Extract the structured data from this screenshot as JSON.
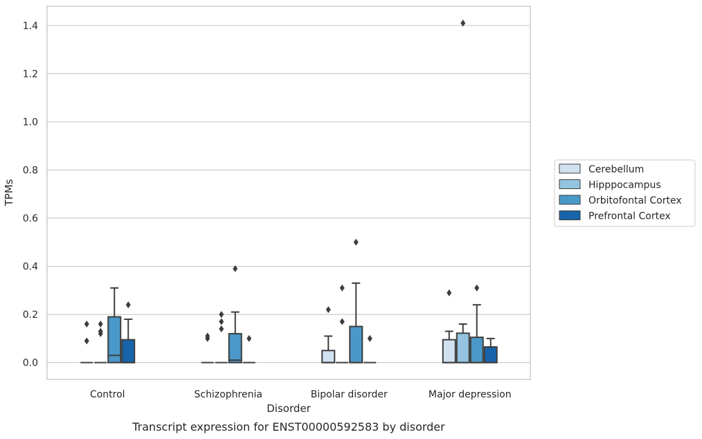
{
  "chart_data": {
    "type": "box",
    "title": "",
    "caption": "Transcript expression for ENST00000592583 by disorder",
    "xlabel": "Disorder",
    "ylabel": "TPMs",
    "ylim": [
      -0.07,
      1.48
    ],
    "yticks": [
      0.0,
      0.2,
      0.4,
      0.6,
      0.8,
      1.0,
      1.2,
      1.4
    ],
    "ytick_labels": [
      "0.0",
      "0.2",
      "0.4",
      "0.6",
      "0.8",
      "1.0",
      "1.2",
      "1.4"
    ],
    "grid": true,
    "legend_position": "right",
    "categories": [
      "Control",
      "Schizophrenia",
      "Bipolar disorder",
      "Major depression"
    ],
    "series": [
      {
        "name": "Cerebellum",
        "color": "#d0e1f2",
        "boxes": [
          {
            "q1": 0.0,
            "median": 0.0,
            "q3": 0.0,
            "whisker_low": 0.0,
            "whisker_high": 0.0,
            "outliers": [
              0.16,
              0.09
            ]
          },
          {
            "q1": 0.0,
            "median": 0.0,
            "q3": 0.0,
            "whisker_low": 0.0,
            "whisker_high": 0.0,
            "outliers": [
              0.11,
              0.1
            ]
          },
          {
            "q1": 0.0,
            "median": 0.0,
            "q3": 0.05,
            "whisker_low": 0.0,
            "whisker_high": 0.11,
            "outliers": [
              0.22
            ]
          },
          {
            "q1": 0.0,
            "median": 0.0,
            "q3": 0.095,
            "whisker_low": 0.0,
            "whisker_high": 0.13,
            "outliers": [
              0.29
            ]
          }
        ]
      },
      {
        "name": "Hipppocampus",
        "color": "#94c4df",
        "boxes": [
          {
            "q1": 0.0,
            "median": 0.0,
            "q3": 0.0,
            "whisker_low": 0.0,
            "whisker_high": 0.0,
            "outliers": [
              0.16,
              0.13,
              0.12
            ]
          },
          {
            "q1": 0.0,
            "median": 0.0,
            "q3": 0.0,
            "whisker_low": 0.0,
            "whisker_high": 0.0,
            "outliers": [
              0.2,
              0.17,
              0.14
            ]
          },
          {
            "q1": 0.0,
            "median": 0.0,
            "q3": 0.0,
            "whisker_low": 0.0,
            "whisker_high": 0.0,
            "outliers": [
              0.31,
              0.17
            ]
          },
          {
            "q1": 0.0,
            "median": 0.0,
            "q3": 0.122,
            "whisker_low": 0.0,
            "whisker_high": 0.16,
            "outliers": [
              1.41
            ]
          }
        ]
      },
      {
        "name": "Orbitofontal Cortex",
        "color": "#4a98c9",
        "boxes": [
          {
            "q1": 0.0,
            "median": 0.03,
            "q3": 0.19,
            "whisker_low": 0.0,
            "whisker_high": 0.31,
            "outliers": []
          },
          {
            "q1": 0.0,
            "median": 0.01,
            "q3": 0.12,
            "whisker_low": 0.0,
            "whisker_high": 0.21,
            "outliers": [
              0.39
            ]
          },
          {
            "q1": 0.0,
            "median": 0.0,
            "q3": 0.15,
            "whisker_low": 0.0,
            "whisker_high": 0.33,
            "outliers": [
              0.5
            ]
          },
          {
            "q1": 0.0,
            "median": 0.0,
            "q3": 0.105,
            "whisker_low": 0.0,
            "whisker_high": 0.24,
            "outliers": [
              0.31
            ]
          }
        ]
      },
      {
        "name": "Prefrontal Cortex",
        "color": "#1764ab",
        "boxes": [
          {
            "q1": 0.0,
            "median": 0.0,
            "q3": 0.095,
            "whisker_low": 0.0,
            "whisker_high": 0.18,
            "outliers": [
              0.24
            ]
          },
          {
            "q1": 0.0,
            "median": 0.0,
            "q3": 0.0,
            "whisker_low": 0.0,
            "whisker_high": 0.0,
            "outliers": [
              0.1
            ]
          },
          {
            "q1": 0.0,
            "median": 0.0,
            "q3": 0.0,
            "whisker_low": 0.0,
            "whisker_high": 0.0,
            "outliers": [
              0.1
            ]
          },
          {
            "q1": 0.0,
            "median": 0.0,
            "q3": 0.065,
            "whisker_low": 0.0,
            "whisker_high": 0.1,
            "outliers": []
          }
        ]
      }
    ]
  }
}
